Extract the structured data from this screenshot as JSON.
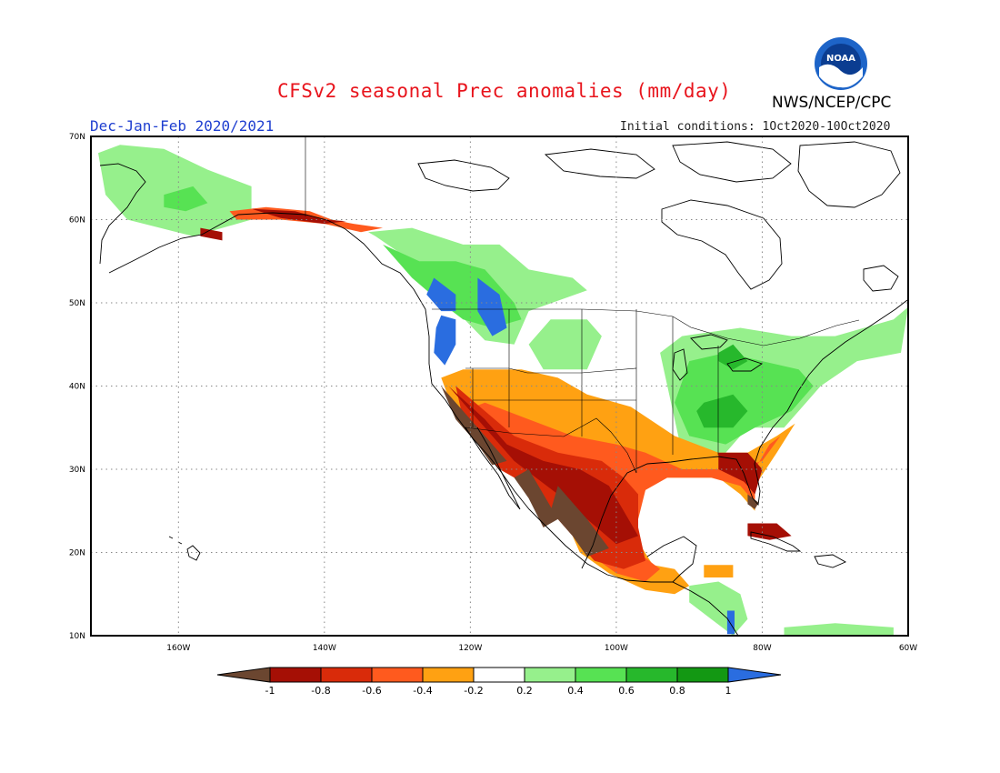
{
  "title": "CFSv2 seasonal Prec anomalies (mm/day)",
  "season_label": "Dec-Jan-Feb 2020/2021",
  "initial_conditions": "Initial conditions: 1Oct2020-10Oct2020",
  "agency": "NWS/NCEP/CPC",
  "logo_text": "NOAA",
  "map": {
    "lat_range": [
      10,
      70
    ],
    "lon_range": [
      -172,
      -60
    ],
    "lat_ticks": [
      {
        "value": 70,
        "label": "70N"
      },
      {
        "value": 60,
        "label": "60N"
      },
      {
        "value": 50,
        "label": "50N"
      },
      {
        "value": 40,
        "label": "40N"
      },
      {
        "value": 30,
        "label": "30N"
      },
      {
        "value": 20,
        "label": "20N"
      },
      {
        "value": 10,
        "label": "10N"
      }
    ],
    "lon_ticks": [
      {
        "value": -160,
        "label": "160W"
      },
      {
        "value": -140,
        "label": "140W"
      },
      {
        "value": -120,
        "label": "120W"
      },
      {
        "value": -100,
        "label": "100W"
      },
      {
        "value": -80,
        "label": "80W"
      },
      {
        "value": -60,
        "label": "60W"
      }
    ],
    "grid": true
  },
  "legend": {
    "labels": [
      "-1",
      "-0.8",
      "-0.6",
      "-0.4",
      "-0.2",
      "0.2",
      "0.4",
      "0.6",
      "0.8",
      "1"
    ],
    "colors": {
      "lt_-1": "#6b4630",
      "-1_-0.8": "#a50f05",
      "-0.8_-0.6": "#d92b0a",
      "-0.6_-0.4": "#ff5a1e",
      "-0.4_-0.2": "#ffa112",
      "-0.2_0.2": "#ffffff",
      "0.2_0.4": "#96f08c",
      "0.4_0.6": "#57e253",
      "0.6_0.8": "#27b82c",
      "0.8_1": "#139813",
      "gt_1": "#2a6de0"
    }
  },
  "anomaly_regions": [
    {
      "category": "0.2_0.4",
      "points": [
        [
          -171,
          68
        ],
        [
          -168,
          69
        ],
        [
          -162,
          68.5
        ],
        [
          -156,
          66
        ],
        [
          -150,
          64
        ],
        [
          -150,
          60
        ],
        [
          -158,
          58
        ],
        [
          -167,
          60
        ],
        [
          -170,
          63
        ]
      ]
    },
    {
      "category": "0.4_0.6",
      "points": [
        [
          -162,
          63
        ],
        [
          -158,
          64
        ],
        [
          -156,
          62
        ],
        [
          -159,
          61
        ],
        [
          -162,
          61.5
        ]
      ]
    },
    {
      "category": "0.2_0.4",
      "points": [
        [
          -137,
          60
        ],
        [
          -134,
          58.5
        ],
        [
          -128,
          59
        ],
        [
          -121,
          57
        ],
        [
          -116,
          57
        ],
        [
          -112,
          54
        ],
        [
          -106,
          53
        ],
        [
          -104,
          51.5
        ],
        [
          -112,
          49
        ],
        [
          -114,
          45
        ],
        [
          -118,
          45.5
        ],
        [
          -123,
          50
        ],
        [
          -128,
          55
        ],
        [
          -133,
          58
        ]
      ]
    },
    {
      "category": "0.4_0.6",
      "points": [
        [
          -132,
          57
        ],
        [
          -127,
          55
        ],
        [
          -122,
          55
        ],
        [
          -118,
          54
        ],
        [
          -114,
          50
        ],
        [
          -113,
          48
        ],
        [
          -117,
          47
        ],
        [
          -121,
          48
        ],
        [
          -124,
          50
        ],
        [
          -128,
          53
        ]
      ]
    },
    {
      "category": "gt_1",
      "points": [
        [
          -125,
          53
        ],
        [
          -122,
          51
        ],
        [
          -122,
          49
        ],
        [
          -124,
          49
        ],
        [
          -126,
          51
        ]
      ]
    },
    {
      "category": "gt_1",
      "points": [
        [
          -124,
          48.5
        ],
        [
          -122,
          48
        ],
        [
          -122,
          45
        ],
        [
          -123.5,
          42.5
        ],
        [
          -125,
          44
        ],
        [
          -124.7,
          47
        ]
      ]
    },
    {
      "category": "gt_1",
      "points": [
        [
          -119,
          53
        ],
        [
          -116,
          51
        ],
        [
          -115,
          47
        ],
        [
          -117,
          46
        ],
        [
          -119,
          49
        ]
      ]
    },
    {
      "category": "0.2_0.4",
      "points": [
        [
          -109,
          48
        ],
        [
          -104,
          48
        ],
        [
          -102,
          46
        ],
        [
          -104,
          42
        ],
        [
          -110,
          42
        ],
        [
          -112,
          45
        ]
      ]
    },
    {
      "category": "0.2_0.4",
      "points": [
        [
          -91,
          46
        ],
        [
          -83,
          47
        ],
        [
          -76,
          46
        ],
        [
          -70,
          46
        ],
        [
          -62,
          48
        ],
        [
          -60,
          49.5
        ],
        [
          -61,
          44
        ],
        [
          -67,
          43
        ],
        [
          -72,
          40
        ],
        [
          -77,
          35
        ],
        [
          -82,
          35
        ],
        [
          -86,
          31
        ],
        [
          -91,
          32
        ],
        [
          -92,
          36
        ],
        [
          -93,
          40
        ],
        [
          -94,
          44
        ]
      ]
    },
    {
      "category": "0.4_0.6",
      "points": [
        [
          -90,
          43
        ],
        [
          -85,
          44
        ],
        [
          -80,
          43
        ],
        [
          -75,
          42
        ],
        [
          -73,
          40
        ],
        [
          -76,
          37
        ],
        [
          -81,
          35
        ],
        [
          -85,
          33
        ],
        [
          -90,
          34
        ],
        [
          -92,
          38
        ]
      ]
    },
    {
      "category": "0.6_0.8",
      "points": [
        [
          -88,
          38
        ],
        [
          -84,
          39
        ],
        [
          -82,
          37
        ],
        [
          -84,
          35
        ],
        [
          -88,
          35
        ],
        [
          -89,
          37
        ]
      ]
    },
    {
      "category": "0.6_0.8",
      "points": [
        [
          -86,
          44
        ],
        [
          -84,
          45
        ],
        [
          -82,
          43
        ],
        [
          -84,
          42
        ],
        [
          -86,
          43
        ]
      ]
    },
    {
      "category": "-0.4_-0.2",
      "points": [
        [
          -113,
          42
        ],
        [
          -108,
          41
        ],
        [
          -104,
          39
        ],
        [
          -98,
          37.5
        ],
        [
          -92,
          34
        ],
        [
          -86,
          32
        ],
        [
          -82,
          32
        ],
        [
          -78,
          34
        ],
        [
          -75.5,
          35.5
        ],
        [
          -78,
          32
        ],
        [
          -81,
          28
        ],
        [
          -81,
          25
        ],
        [
          -83,
          27
        ],
        [
          -86,
          29
        ],
        [
          -90,
          29
        ],
        [
          -95,
          29
        ],
        [
          -97,
          26
        ],
        [
          -97.5,
          22
        ],
        [
          -95,
          18.5
        ],
        [
          -92,
          18
        ],
        [
          -90,
          16
        ],
        [
          -92,
          15
        ],
        [
          -96,
          15.5
        ],
        [
          -101,
          17.5
        ],
        [
          -105,
          20
        ],
        [
          -107,
          24
        ],
        [
          -110,
          27
        ],
        [
          -113,
          30
        ],
        [
          -117,
          32
        ],
        [
          -120,
          34
        ],
        [
          -122.5,
          37.5
        ],
        [
          -124,
          41
        ],
        [
          -121,
          42
        ]
      ]
    },
    {
      "category": "-0.6_-0.4",
      "points": [
        [
          -118,
          38
        ],
        [
          -112,
          36
        ],
        [
          -106,
          34
        ],
        [
          -100,
          33
        ],
        [
          -96,
          32
        ],
        [
          -91,
          30
        ],
        [
          -87,
          30
        ],
        [
          -84,
          30
        ],
        [
          -80,
          31
        ],
        [
          -77.5,
          34
        ],
        [
          -79,
          33
        ],
        [
          -81,
          30
        ],
        [
          -81,
          26
        ],
        [
          -83,
          28
        ],
        [
          -87,
          29
        ],
        [
          -93,
          29
        ],
        [
          -96,
          27.5
        ],
        [
          -97,
          24
        ],
        [
          -97,
          20
        ],
        [
          -94,
          18
        ],
        [
          -96,
          16.5
        ],
        [
          -100,
          17.5
        ],
        [
          -104,
          20
        ],
        [
          -106,
          23
        ],
        [
          -109,
          26
        ],
        [
          -112,
          29
        ],
        [
          -115,
          31
        ],
        [
          -118,
          33
        ],
        [
          -121,
          35
        ],
        [
          -121,
          37
        ]
      ]
    },
    {
      "category": "-0.8_-0.6",
      "points": [
        [
          -122,
          40
        ],
        [
          -118,
          37
        ],
        [
          -114,
          34
        ],
        [
          -108,
          32
        ],
        [
          -102,
          31
        ],
        [
          -99,
          29
        ],
        [
          -97,
          27
        ],
        [
          -97,
          23
        ],
        [
          -96,
          19
        ],
        [
          -99,
          18
        ],
        [
          -103,
          19
        ],
        [
          -106,
          22
        ],
        [
          -109,
          25
        ],
        [
          -112,
          28
        ],
        [
          -116,
          30
        ],
        [
          -119,
          33
        ],
        [
          -121,
          36
        ]
      ]
    },
    {
      "category": "-1_-0.8",
      "points": [
        [
          -123,
          40
        ],
        [
          -120,
          37
        ],
        [
          -117,
          34
        ],
        [
          -114,
          31
        ],
        [
          -111,
          29
        ],
        [
          -108,
          27
        ],
        [
          -104,
          24
        ],
        [
          -100,
          21
        ],
        [
          -97,
          22
        ],
        [
          -99,
          25
        ],
        [
          -101,
          28
        ],
        [
          -105,
          30
        ],
        [
          -110,
          31
        ],
        [
          -115,
          33
        ],
        [
          -118,
          36
        ]
      ]
    },
    {
      "category": "-1_-0.8",
      "points": [
        [
          -86,
          32
        ],
        [
          -82,
          32
        ],
        [
          -80,
          30
        ],
        [
          -81,
          27
        ],
        [
          -82.5,
          28.5
        ],
        [
          -86,
          30
        ]
      ]
    },
    {
      "category": "lt_-1",
      "points": [
        [
          -124,
          40
        ],
        [
          -120,
          36
        ],
        [
          -117,
          33
        ],
        [
          -115,
          31
        ],
        [
          -117,
          30.5
        ],
        [
          -119,
          33
        ],
        [
          -122,
          36
        ]
      ]
    },
    {
      "category": "lt_-1",
      "points": [
        [
          -108,
          28
        ],
        [
          -104,
          24
        ],
        [
          -101,
          20.5
        ],
        [
          -104,
          19.5
        ],
        [
          -106,
          22
        ],
        [
          -109,
          25
        ]
      ]
    },
    {
      "category": "lt_-1",
      "points": [
        [
          -112,
          30
        ],
        [
          -110,
          27
        ],
        [
          -108,
          24
        ],
        [
          -110,
          23
        ],
        [
          -112,
          26.5
        ],
        [
          -114,
          29
        ]
      ]
    },
    {
      "category": "lt_-1",
      "points": [
        [
          -82,
          27
        ],
        [
          -80.5,
          26
        ],
        [
          -81,
          25.2
        ],
        [
          -82,
          25.8
        ]
      ]
    },
    {
      "category": "-0.6_-0.4",
      "points": [
        [
          -153,
          61
        ],
        [
          -148,
          61.5
        ],
        [
          -142,
          61
        ],
        [
          -139,
          60
        ],
        [
          -136,
          59.5
        ],
        [
          -132,
          59
        ],
        [
          -135,
          58.5
        ],
        [
          -140,
          59.5
        ],
        [
          -146,
          60
        ],
        [
          -152,
          60
        ]
      ]
    },
    {
      "category": "-1_-0.8",
      "points": [
        [
          -150,
          61.3
        ],
        [
          -144,
          61
        ],
        [
          -140,
          60
        ],
        [
          -137,
          59.8
        ],
        [
          -140,
          59.5
        ],
        [
          -146,
          60.2
        ]
      ]
    },
    {
      "category": "-1_-0.8",
      "points": [
        [
          -157,
          59
        ],
        [
          -154,
          58.5
        ],
        [
          -154,
          57.5
        ],
        [
          -157,
          58
        ]
      ]
    },
    {
      "category": "0.2_0.4",
      "points": [
        [
          -90,
          16
        ],
        [
          -86,
          16.5
        ],
        [
          -83,
          15
        ],
        [
          -82,
          12
        ],
        [
          -84,
          10
        ],
        [
          -87,
          12
        ],
        [
          -90,
          14
        ]
      ]
    },
    {
      "category": "gt_1",
      "points": [
        [
          -84.8,
          13
        ],
        [
          -83.8,
          13
        ],
        [
          -83.8,
          10.2
        ],
        [
          -84.8,
          10.2
        ]
      ]
    },
    {
      "category": "-1_-0.8",
      "points": [
        [
          -82,
          23.5
        ],
        [
          -78,
          23.5
        ],
        [
          -76,
          22
        ],
        [
          -79,
          21.5
        ],
        [
          -82,
          22
        ]
      ]
    },
    {
      "category": "-0.4_-0.2",
      "points": [
        [
          -88,
          18.5
        ],
        [
          -84,
          18.5
        ],
        [
          -84,
          17
        ],
        [
          -88,
          17
        ]
      ]
    },
    {
      "category": "0.2_0.4",
      "points": [
        [
          -77,
          11
        ],
        [
          -70,
          11.5
        ],
        [
          -62,
          11
        ],
        [
          -62,
          10
        ],
        [
          -77,
          10
        ]
      ]
    }
  ]
}
